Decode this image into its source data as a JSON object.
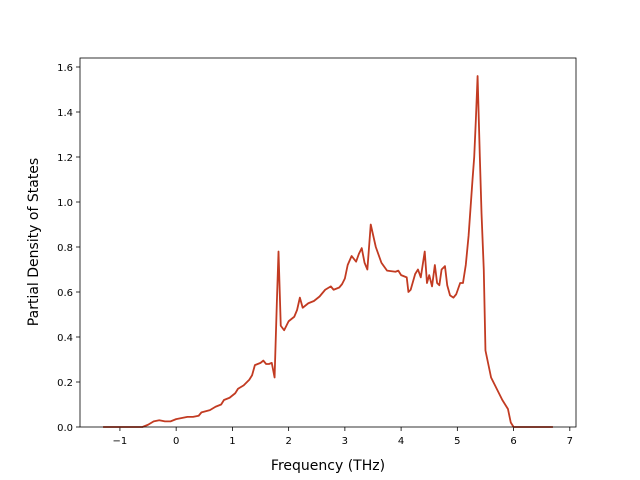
{
  "chart_data": {
    "type": "line",
    "xlabel": "Frequency (THz)",
    "ylabel": "Partial Density of States",
    "x": [
      -1.3,
      -0.6,
      -0.5,
      -0.4,
      -0.3,
      -0.2,
      -0.1,
      0,
      0.1,
      0.2,
      0.3,
      0.4,
      0.45,
      0.6,
      0.7,
      0.8,
      0.85,
      0.95,
      1.05,
      1.1,
      1.2,
      1.3,
      1.35,
      1.4,
      1.5,
      1.55,
      1.6,
      1.65,
      1.7,
      1.75,
      1.79,
      1.82,
      1.86,
      1.92,
      2.0,
      2.1,
      2.15,
      2.2,
      2.25,
      2.35,
      2.45,
      2.55,
      2.65,
      2.75,
      2.8,
      2.9,
      2.95,
      3.0,
      3.05,
      3.12,
      3.2,
      3.25,
      3.3,
      3.35,
      3.4,
      3.46,
      3.55,
      3.65,
      3.75,
      3.9,
      3.95,
      4.0,
      4.1,
      4.13,
      4.17,
      4.25,
      4.3,
      4.35,
      4.42,
      4.46,
      4.5,
      4.55,
      4.6,
      4.64,
      4.68,
      4.72,
      4.78,
      4.82,
      4.87,
      4.93,
      4.98,
      5.05,
      5.1,
      5.15,
      5.2,
      5.27,
      5.3,
      5.33,
      5.36,
      5.4,
      5.43,
      5.47,
      5.5,
      5.55,
      5.6,
      5.7,
      5.8,
      5.9,
      5.95,
      6.0,
      6.03,
      6.06,
      6.7
    ],
    "series": [
      {
        "color": "#c23b22",
        "values": [
          0,
          0,
          0.01,
          0.025,
          0.03,
          0.025,
          0.025,
          0.035,
          0.04,
          0.045,
          0.045,
          0.05,
          0.065,
          0.075,
          0.09,
          0.1,
          0.12,
          0.13,
          0.15,
          0.17,
          0.185,
          0.21,
          0.23,
          0.275,
          0.285,
          0.295,
          0.28,
          0.28,
          0.285,
          0.22,
          0.55,
          0.78,
          0.45,
          0.43,
          0.47,
          0.49,
          0.52,
          0.575,
          0.53,
          0.55,
          0.56,
          0.58,
          0.61,
          0.625,
          0.61,
          0.62,
          0.635,
          0.66,
          0.72,
          0.76,
          0.735,
          0.77,
          0.795,
          0.73,
          0.7,
          0.9,
          0.8,
          0.73,
          0.695,
          0.69,
          0.695,
          0.675,
          0.665,
          0.6,
          0.61,
          0.68,
          0.7,
          0.665,
          0.78,
          0.64,
          0.675,
          0.625,
          0.72,
          0.64,
          0.63,
          0.7,
          0.715,
          0.63,
          0.585,
          0.575,
          0.59,
          0.64,
          0.64,
          0.72,
          0.85,
          1.1,
          1.2,
          1.37,
          1.56,
          1.2,
          0.95,
          0.7,
          0.34,
          0.28,
          0.22,
          0.17,
          0.12,
          0.08,
          0.02,
          0,
          0,
          0,
          0
        ]
      }
    ],
    "xlim": [
      -1.71,
      7.11
    ],
    "ylim": [
      0,
      1.64
    ],
    "xticks": [
      {
        "value": -1,
        "label": "−1"
      },
      0,
      1,
      2,
      3,
      4,
      5,
      6,
      7
    ],
    "yticks": [
      {
        "value": 0,
        "label": "0.0"
      },
      {
        "value": 0.2,
        "label": "0.2"
      },
      {
        "value": 0.4,
        "label": "0.4"
      },
      {
        "value": 0.6,
        "label": "0.6"
      },
      {
        "value": 0.8,
        "label": "0.8"
      },
      {
        "value": 1,
        "label": "1.0"
      },
      {
        "value": 1.2,
        "label": "1.2"
      },
      {
        "value": 1.4,
        "label": "1.4"
      },
      {
        "value": 1.6,
        "label": "1.6"
      }
    ]
  }
}
